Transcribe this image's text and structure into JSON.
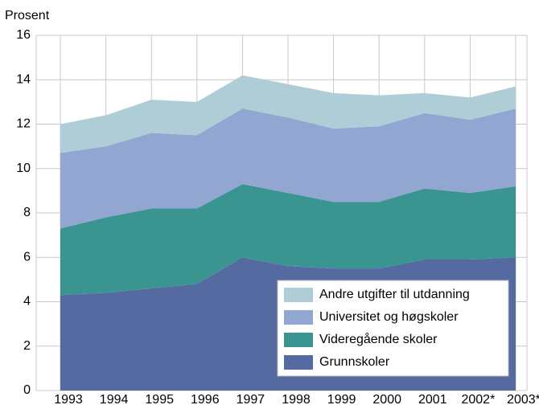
{
  "chart_data": {
    "type": "stacked_area",
    "y_axis_label": "Prosent",
    "categories": [
      "1993",
      "1994",
      "1995",
      "1996",
      "1997",
      "1998",
      "1999",
      "2000",
      "2001",
      "2002*",
      "2003*"
    ],
    "series": [
      {
        "name": "Grunnskoler",
        "color": "#556aa0",
        "values": [
          4.3,
          4.4,
          4.6,
          4.8,
          6.0,
          5.6,
          5.5,
          5.5,
          5.9,
          5.9,
          6.0
        ]
      },
      {
        "name": "Videregående skoler",
        "color": "#3a9590",
        "values": [
          3.0,
          3.4,
          3.6,
          3.4,
          3.3,
          3.3,
          3.0,
          3.0,
          3.2,
          3.0,
          3.2
        ]
      },
      {
        "name": "Universitet og høgskoler",
        "color": "#91a6d0",
        "values": [
          3.4,
          3.2,
          3.4,
          3.3,
          3.4,
          3.4,
          3.3,
          3.4,
          3.4,
          3.3,
          3.5
        ]
      },
      {
        "name": "Andre utgifter til utdanning",
        "color": "#aecdd6",
        "values": [
          1.3,
          1.4,
          1.5,
          1.5,
          1.5,
          1.5,
          1.6,
          1.4,
          0.9,
          1.0,
          1.0
        ]
      }
    ],
    "ylim": [
      0,
      16
    ],
    "yticks": [
      0,
      2,
      4,
      6,
      8,
      10,
      12,
      14,
      16
    ],
    "grid": true,
    "legend": "lower right"
  }
}
